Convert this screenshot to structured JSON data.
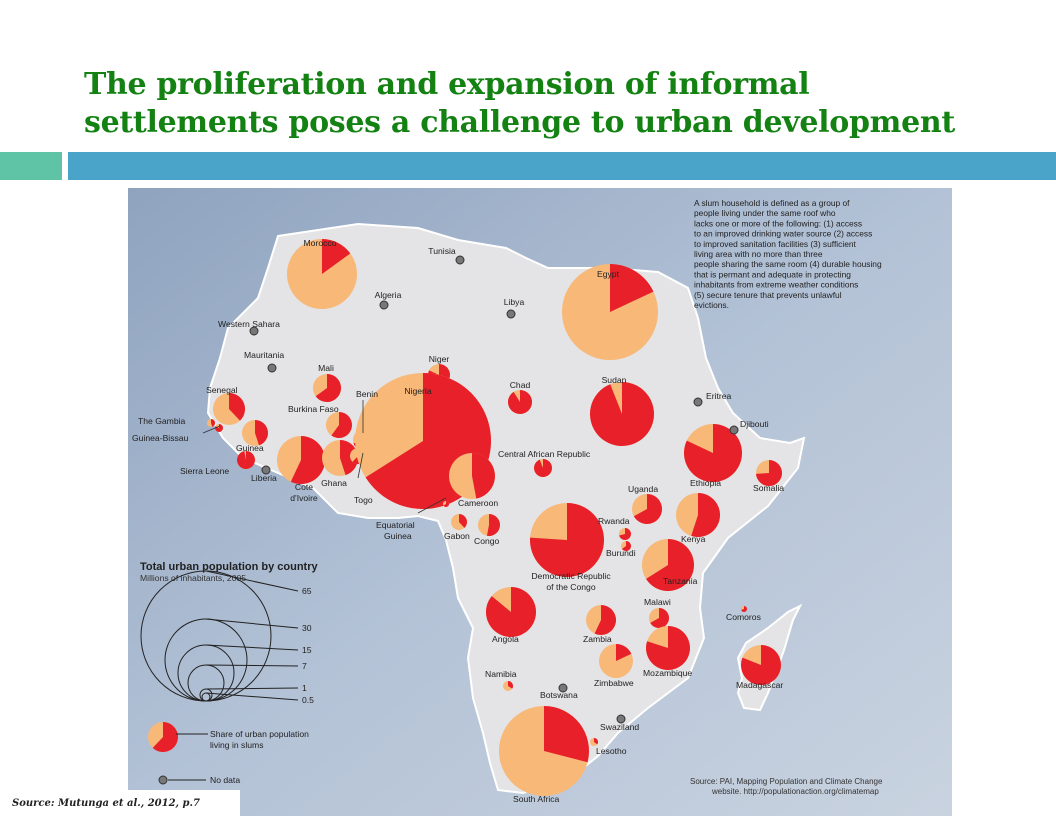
{
  "slide": {
    "title_line1": "The proliferation and expansion of informal",
    "title_line2": "settlements poses a challenge to urban development",
    "source": "Source: Mutunga et al., 2012,  p.7"
  },
  "colors": {
    "slum": "#e8202a",
    "non_slum": "#f7b878",
    "land": "#e4e4e6",
    "sea": "#a2b3cc",
    "title": "#138213"
  },
  "definition": [
    "A slum household is defined as a group of",
    "people living under the same roof who",
    "lacks one or more of the following:  (1) access",
    "to an improved drinking water source (2) access",
    "to improved sanitation facilities (3) sufficient",
    "living area with no more than three",
    "people sharing the same room (4) durable housing",
    "that is permant and adequate in protecting",
    "inhabitants from extreme weather conditions",
    "(5) secure tenure that prevents unlawful",
    "evictions."
  ],
  "legend": {
    "title": "Total urban population by country",
    "subtitle": "Millions of inhabitants, 2005",
    "sizes": [
      "65",
      "30",
      "15",
      "7",
      "1",
      "0.5"
    ],
    "share_label_line1": "Share of urban population",
    "share_label_line2": "living in slums",
    "no_data_label": "No data"
  },
  "credit": [
    "Source: PAI, Mapping Population and Climate Change",
    "website. http://populationaction.org/climatemap"
  ],
  "map_data": {
    "countries_with_data": [
      {
        "name": "Morocco",
        "slum_share": 0.15
      },
      {
        "name": "Egypt",
        "slum_share": 0.18
      },
      {
        "name": "Niger",
        "slum_share": 0.82
      },
      {
        "name": "Mali",
        "slum_share": 0.65
      },
      {
        "name": "Senegal",
        "slum_share": 0.38
      },
      {
        "name": "The Gambia",
        "slum_share": 0.45
      },
      {
        "name": "Guinea-Bissau",
        "slum_share": 0.83
      },
      {
        "name": "Guinea",
        "slum_share": 0.45
      },
      {
        "name": "Sierra Leone",
        "slum_share": 0.97
      },
      {
        "name": "Burkina Faso",
        "slum_share": 0.6
      },
      {
        "name": "Cote d'Ivoire",
        "slum_share": 0.57
      },
      {
        "name": "Ghana",
        "slum_share": 0.45
      },
      {
        "name": "Togo",
        "slum_share": 0.62
      },
      {
        "name": "Benin",
        "slum_share": 0.7
      },
      {
        "name": "Nigeria",
        "slum_share": 0.66
      },
      {
        "name": "Chad",
        "slum_share": 0.91
      },
      {
        "name": "Sudan",
        "slum_share": 0.94
      },
      {
        "name": "Central African Republic",
        "slum_share": 0.94
      },
      {
        "name": "Cameroon",
        "slum_share": 0.47
      },
      {
        "name": "Equatorial Guinea",
        "slum_share": 0.66
      },
      {
        "name": "Gabon",
        "slum_share": 0.38
      },
      {
        "name": "Congo",
        "slum_share": 0.53
      },
      {
        "name": "Democratic Republic of the Congo",
        "slum_share": 0.76
      },
      {
        "name": "Ethiopia",
        "slum_share": 0.82
      },
      {
        "name": "Somalia",
        "slum_share": 0.74
      },
      {
        "name": "Uganda",
        "slum_share": 0.67
      },
      {
        "name": "Kenya",
        "slum_share": 0.55
      },
      {
        "name": "Rwanda",
        "slum_share": 0.71
      },
      {
        "name": "Burundi",
        "slum_share": 0.65
      },
      {
        "name": "Tanzania",
        "slum_share": 0.66
      },
      {
        "name": "Angola",
        "slum_share": 0.86
      },
      {
        "name": "Zambia",
        "slum_share": 0.57
      },
      {
        "name": "Malawi",
        "slum_share": 0.67
      },
      {
        "name": "Comoros",
        "slum_share": 0.7
      },
      {
        "name": "Namibia",
        "slum_share": 0.34
      },
      {
        "name": "Zimbabwe",
        "slum_share": 0.18
      },
      {
        "name": "Mozambique",
        "slum_share": 0.8
      },
      {
        "name": "Madagascar",
        "slum_share": 0.81
      },
      {
        "name": "Lesotho",
        "slum_share": 0.35
      },
      {
        "name": "South Africa",
        "slum_share": 0.29
      }
    ],
    "countries_no_data": [
      "Tunisia",
      "Algeria",
      "Libya",
      "Western Sahara",
      "Mauritania",
      "Liberia",
      "Eritrea",
      "Djibouti",
      "Botswana",
      "Swaziland"
    ]
  }
}
